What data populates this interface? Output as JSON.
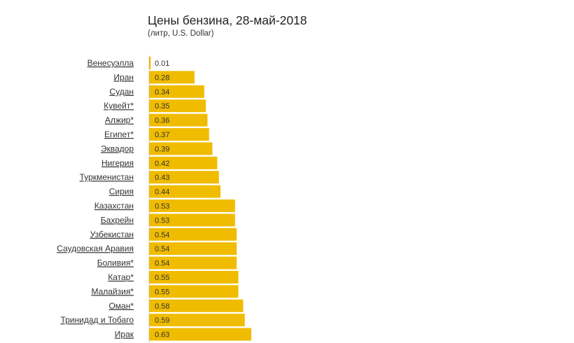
{
  "chart_data": {
    "type": "bar",
    "orientation": "horizontal",
    "title": "Цены бензина, 28-май-2018",
    "subtitle": "(литр, U.S. Dollar)",
    "xlabel": "",
    "ylabel": "",
    "xlim": [
      0,
      0.63
    ],
    "grid": false,
    "bar_color": "#f0bc00",
    "categories": [
      "Венесуэлла",
      "Иран",
      "Судан",
      "Кувейт*",
      "Алжир*",
      "Египет*",
      "Эквадор",
      "Нигерия",
      "Туркменистан",
      "Сирия",
      "Казахстан",
      "Бахрейн",
      "Узбекистан",
      "Саудовская Аравия",
      "Боливия*",
      "Катар*",
      "Малайзия*",
      "Оман*",
      "Тринидад и Тобаго",
      "Ирак"
    ],
    "values": [
      0.01,
      0.28,
      0.34,
      0.35,
      0.36,
      0.37,
      0.39,
      0.42,
      0.43,
      0.44,
      0.53,
      0.53,
      0.54,
      0.54,
      0.54,
      0.55,
      0.55,
      0.58,
      0.59,
      0.63
    ],
    "value_labels": [
      "0.01",
      "0.28",
      "0.34",
      "0.35",
      "0.36",
      "0.37",
      "0.39",
      "0.42",
      "0.43",
      "0.44",
      "0.53",
      "0.53",
      "0.54",
      "0.54",
      "0.54",
      "0.55",
      "0.55",
      "0.58",
      "0.59",
      "0.63"
    ]
  }
}
